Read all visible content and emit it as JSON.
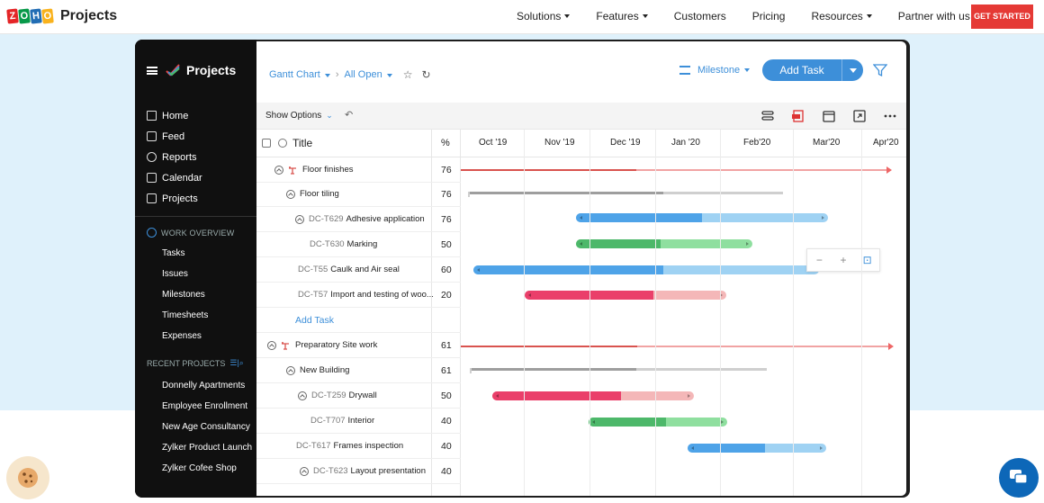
{
  "site": {
    "logo_letters": [
      "Z",
      "O",
      "H",
      "O"
    ],
    "logo_text": "Projects",
    "nav": [
      {
        "label": "Solutions",
        "has_caret": true
      },
      {
        "label": "Features",
        "has_caret": true
      },
      {
        "label": "Customers",
        "has_caret": false
      },
      {
        "label": "Pricing",
        "has_caret": false
      },
      {
        "label": "Resources",
        "has_caret": true
      },
      {
        "label": "Partner with us",
        "has_caret": false
      }
    ],
    "cta": "GET STARTED",
    "cta_color": "#e53935"
  },
  "sidebar": {
    "brand": "Projects",
    "menu": [
      {
        "label": "Home",
        "icon": "home-icon"
      },
      {
        "label": "Feed",
        "icon": "feed-icon"
      },
      {
        "label": "Reports",
        "icon": "reports-icon"
      },
      {
        "label": "Calendar",
        "icon": "calendar-icon"
      },
      {
        "label": "Projects",
        "icon": "projects-icon"
      }
    ],
    "work_overview": "WORK OVERVIEW",
    "work_items": [
      "Tasks",
      "Issues",
      "Milestones",
      "Timesheets",
      "Expenses"
    ],
    "recent_projects": "RECENT PROJECTS",
    "projects": [
      "Donnelly Apartments",
      "Employee Enrollment",
      "New Age Consultancy",
      "Zylker Product Launch",
      "Zylker Cofee Shop"
    ]
  },
  "toolbar": {
    "view": "Gantt Chart",
    "filter": "All Open",
    "milestone": "Milestone",
    "add_task": "Add Task",
    "accent": "#3d8fd9"
  },
  "options": {
    "show_options": "Show Options"
  },
  "grid": {
    "title_header": "Title",
    "pct_header": "%",
    "months": [
      "Oct '19",
      "Nov '19",
      "Dec '19",
      "Jan '20",
      "Feb'20",
      "Mar'20",
      "Apr'20"
    ],
    "rows": [
      {
        "id": "",
        "label": "Floor finishes",
        "pct": "76",
        "kind": "milestone"
      },
      {
        "id": "",
        "label": "Floor tiling",
        "pct": "76",
        "kind": "parent"
      },
      {
        "id": "DC-T629",
        "label": "Adhesive application",
        "pct": "76",
        "kind": "task"
      },
      {
        "id": "DC-T630",
        "label": "Marking",
        "pct": "50",
        "kind": "task"
      },
      {
        "id": "DC-T55",
        "label": "Caulk and Air seal",
        "pct": "60",
        "kind": "task"
      },
      {
        "id": "DC-T57",
        "label": "Import and testing of woo...",
        "pct": "20",
        "kind": "task"
      },
      {
        "id": "",
        "label": "Add Task",
        "pct": "",
        "kind": "add"
      },
      {
        "id": "",
        "label": "Preparatory Site work",
        "pct": "61",
        "kind": "milestone"
      },
      {
        "id": "",
        "label": "New Building",
        "pct": "61",
        "kind": "parent"
      },
      {
        "id": "DC-T259",
        "label": "Drywall",
        "pct": "50",
        "kind": "task"
      },
      {
        "id": "DC-T707",
        "label": "Interior",
        "pct": "40",
        "kind": "task"
      },
      {
        "id": "DC-T617",
        "label": "Frames inspection",
        "pct": "40",
        "kind": "task"
      },
      {
        "id": "DC-T623",
        "label": "Layout presentation",
        "pct": "40",
        "kind": "task"
      }
    ],
    "zoom": {
      "minus": "−",
      "plus": "+"
    }
  },
  "colors": {
    "blue_done": "#4ea3e8",
    "blue_rest": "#9fd2f3",
    "green_done": "#4db86a",
    "green_rest": "#8fdf9f",
    "red_done": "#ea3f6a",
    "red_rest": "#f4b7b8",
    "milestone_done": "#d9534f",
    "milestone_rest": "#f1a3a3",
    "parent_done": "#9e9e9e",
    "parent_rest": "#cfcfcf"
  }
}
